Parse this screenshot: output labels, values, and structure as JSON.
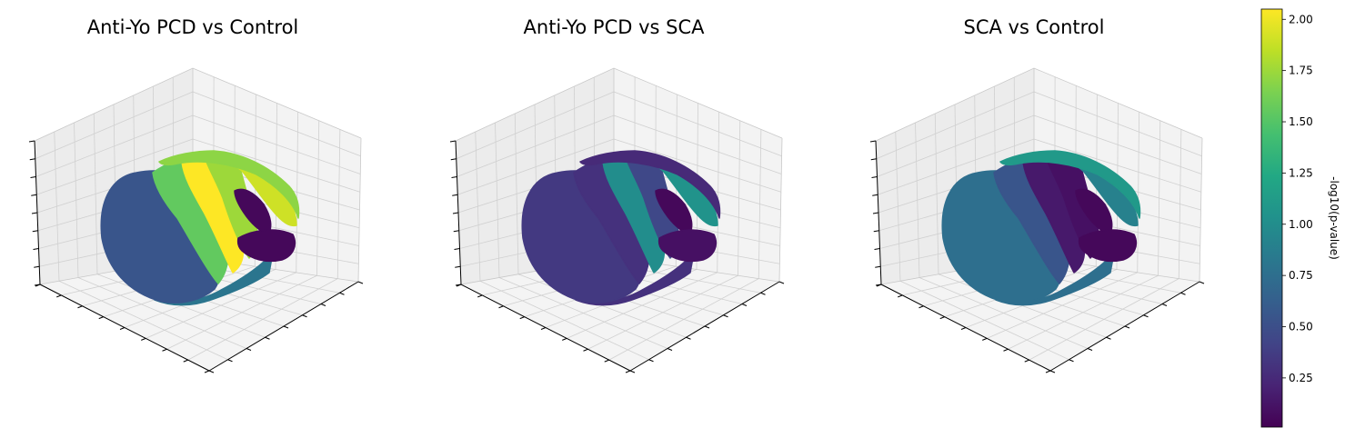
{
  "figure": {
    "titles": [
      "Anti-Yo PCD vs Control",
      "Anti-Yo PCD vs SCA",
      "SCA vs Control"
    ]
  },
  "colorbar": {
    "label": "-log10(p-value)",
    "tick_labels": [
      "0.25",
      "0.50",
      "0.75",
      "1.00",
      "1.25",
      "1.50",
      "1.75",
      "2.00"
    ],
    "tick_values": [
      0.25,
      0.5,
      0.75,
      1.0,
      1.25,
      1.5,
      1.75,
      2.0
    ],
    "range": [
      0.01,
      2.05
    ],
    "colormap": "viridis"
  },
  "chart_data": [
    {
      "type": "scatter",
      "projection": "3d",
      "title": "Anti-Yo PCD vs Control",
      "grid": true,
      "tick_labels_shown": false,
      "regions": [
        {
          "name": "posterior-lobe",
          "value": 0.55
        },
        {
          "name": "band-2",
          "value": 1.55
        },
        {
          "name": "band-3",
          "value": 2.05
        },
        {
          "name": "band-4",
          "value": 1.75
        },
        {
          "name": "band-5",
          "value": 1.9
        },
        {
          "name": "top-rim",
          "value": 1.7
        },
        {
          "name": "front-notch",
          "value": 0.05
        },
        {
          "name": "lower-flap",
          "value": 0.05
        },
        {
          "name": "bottom-rim",
          "value": 0.8
        }
      ]
    },
    {
      "type": "scatter",
      "projection": "3d",
      "title": "Anti-Yo PCD vs SCA",
      "grid": true,
      "tick_labels_shown": false,
      "regions": [
        {
          "name": "posterior-lobe",
          "value": 0.35
        },
        {
          "name": "band-2",
          "value": 0.3
        },
        {
          "name": "band-3",
          "value": 1.0
        },
        {
          "name": "band-4",
          "value": 0.45
        },
        {
          "name": "band-5",
          "value": 1.05
        },
        {
          "name": "top-rim",
          "value": 0.25
        },
        {
          "name": "front-notch",
          "value": 0.05
        },
        {
          "name": "lower-flap",
          "value": 0.1
        },
        {
          "name": "bottom-rim",
          "value": 0.3
        }
      ]
    },
    {
      "type": "scatter",
      "projection": "3d",
      "title": "SCA vs Control",
      "grid": true,
      "tick_labels_shown": false,
      "regions": [
        {
          "name": "posterior-lobe",
          "value": 0.75
        },
        {
          "name": "band-2",
          "value": 0.55
        },
        {
          "name": "band-3",
          "value": 0.15
        },
        {
          "name": "band-4",
          "value": 0.1
        },
        {
          "name": "band-5",
          "value": 0.9
        },
        {
          "name": "top-rim",
          "value": 1.1
        },
        {
          "name": "front-notch",
          "value": 0.05
        },
        {
          "name": "lower-flap",
          "value": 0.05
        },
        {
          "name": "bottom-rim",
          "value": 0.75
        }
      ]
    }
  ]
}
